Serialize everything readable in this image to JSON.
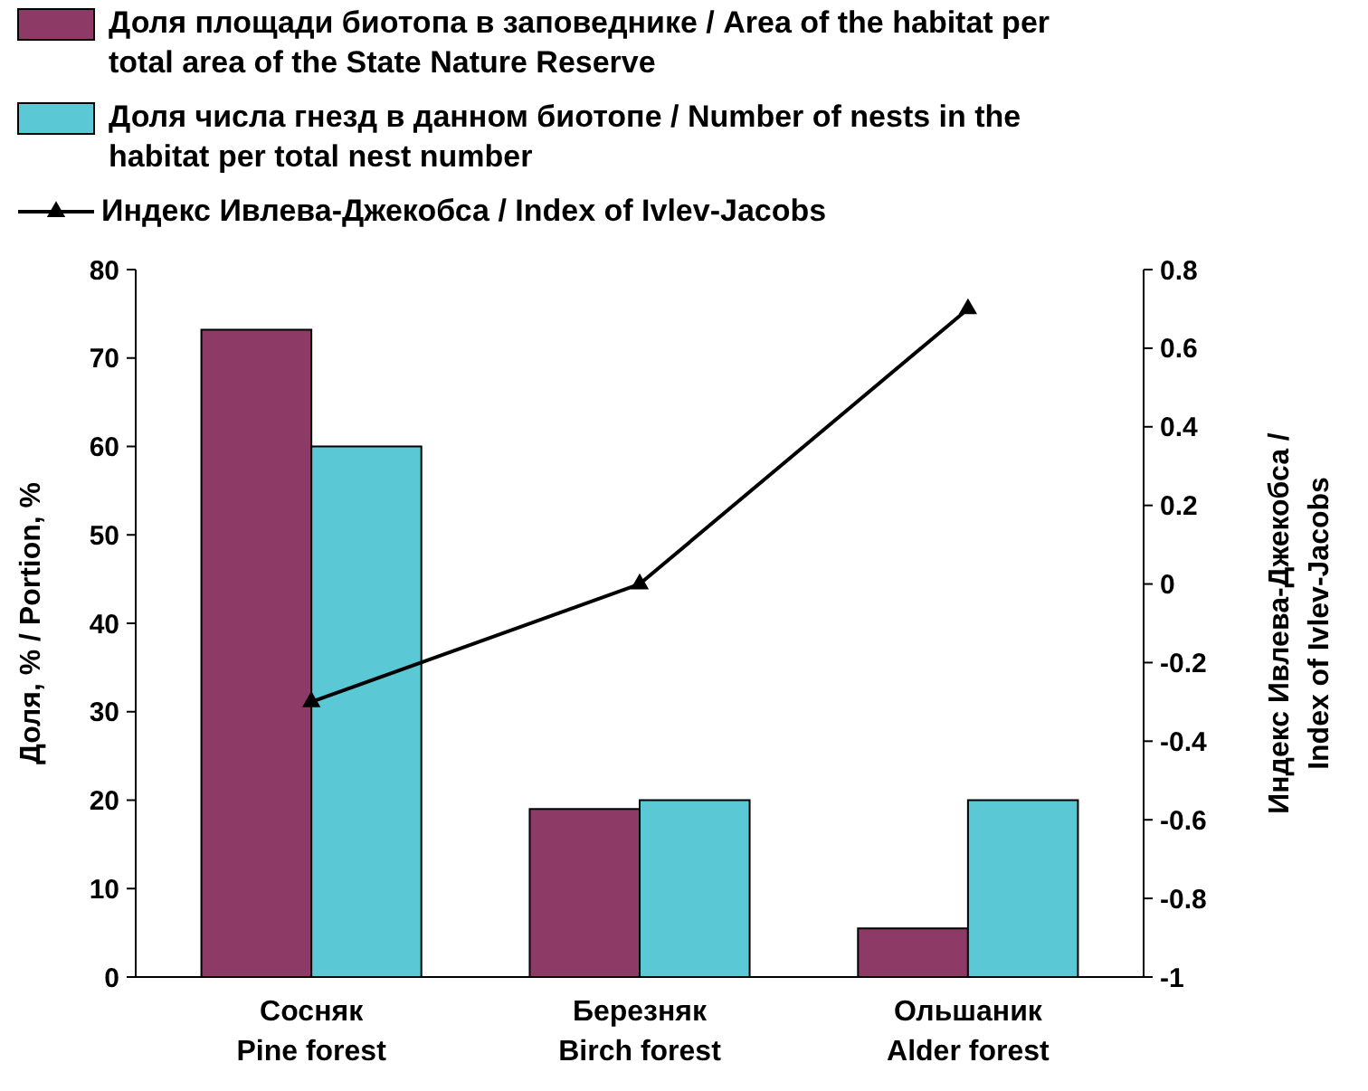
{
  "chart_data": {
    "type": "bar",
    "categories": [
      "Сосняк\nPine forest",
      "Березняк\nBirch forest",
      "Ольшаник\nAlder forest"
    ],
    "ylabel": "Доля, % / Portion, %",
    "y2label": "Индекс Ивлева-Джекобса / Index of Ivlev-Jacobs",
    "ylim": [
      0,
      80
    ],
    "yticks": [
      0,
      10,
      20,
      30,
      40,
      50,
      60,
      70,
      80
    ],
    "y2lim": [
      -1,
      0.8
    ],
    "y2ticks": [
      -1,
      -0.8,
      -0.6,
      -0.4,
      -0.2,
      0,
      0.2,
      0.4,
      0.6,
      0.8
    ],
    "legend": "top",
    "grid": false,
    "marker": "triangle",
    "series": [
      {
        "name": "Доля площади биотопа в заповеднике / Area of the habitat per total area of the State Nature Reserve",
        "color": "#8e3a66",
        "values": [
          73.2,
          19,
          5.5
        ]
      },
      {
        "name": "Доля числа гнезд в данном биотопе / Number of nests in the habitat per total nest number",
        "color": "#5bc8d6",
        "values": [
          60,
          20,
          20
        ]
      },
      {
        "name": "Индекс Ивлева-Джекобса / Index of Ivlev-Jacobs",
        "type": "line",
        "axis": "y2",
        "color": "#000000",
        "values": [
          -0.3,
          0,
          0.7
        ]
      }
    ]
  }
}
